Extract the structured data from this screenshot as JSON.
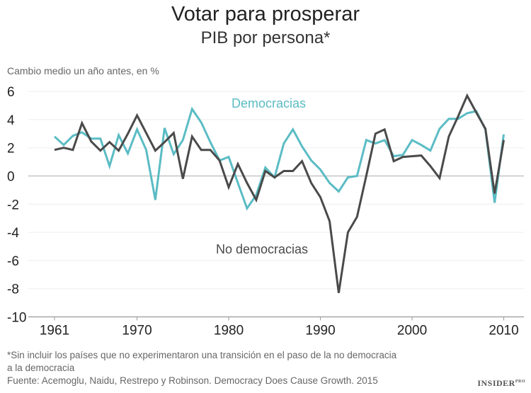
{
  "chart_data": {
    "type": "line",
    "title": "Votar para prosperar",
    "subtitle": "PIB por persona*",
    "ylabel": "Cambio medio un año antes, en %",
    "xlabel": "",
    "ylim": [
      -10,
      6
    ],
    "xlim": [
      1961,
      2010
    ],
    "yticks": [
      "6",
      "4",
      "2",
      "0",
      "-2",
      "-4",
      "-6",
      "-8",
      "-10"
    ],
    "xticks": [
      "1961",
      "1970",
      "1980",
      "1990",
      "2000",
      "2010"
    ],
    "grid": true,
    "series": [
      {
        "name": "Democracias",
        "color": "#5bbcc4",
        "x": [
          1961,
          1962,
          1963,
          1964,
          1965,
          1966,
          1967,
          1968,
          1969,
          1970,
          1971,
          1972,
          1973,
          1974,
          1975,
          1976,
          1977,
          1978,
          1979,
          1980,
          1981,
          1982,
          1983,
          1984,
          1985,
          1986,
          1987,
          1988,
          1989,
          1990,
          1991,
          1992,
          1993,
          1994,
          1995,
          1996,
          1997,
          1998,
          1999,
          2000,
          2001,
          2002,
          2003,
          2004,
          2005,
          2006,
          2007,
          2008,
          2009,
          2010
        ],
        "values": [
          2.8,
          2.2,
          2.85,
          3.1,
          2.65,
          2.65,
          0.7,
          2.9,
          1.6,
          3.3,
          1.85,
          -1.7,
          3.4,
          1.55,
          2.55,
          4.75,
          3.8,
          2.4,
          1.1,
          1.35,
          -0.5,
          -2.3,
          -1.35,
          0.6,
          -0.1,
          2.3,
          3.3,
          2.1,
          1.1,
          0.45,
          -0.5,
          -1.1,
          -0.1,
          0.0,
          2.55,
          2.3,
          2.55,
          1.4,
          1.5,
          2.55,
          2.2,
          1.8,
          3.35,
          4.05,
          4.05,
          4.45,
          4.6,
          3.3,
          -1.9,
          2.95
        ]
      },
      {
        "name": "No democracias",
        "color": "#4a4a4a",
        "x": [
          1961,
          1962,
          1963,
          1964,
          1965,
          1966,
          1967,
          1968,
          1969,
          1970,
          1971,
          1972,
          1973,
          1974,
          1975,
          1976,
          1977,
          1978,
          1979,
          1980,
          1981,
          1982,
          1983,
          1984,
          1985,
          1986,
          1987,
          1988,
          1989,
          1990,
          1991,
          1992,
          1993,
          1994,
          1995,
          1996,
          1997,
          1998,
          1999,
          2000,
          2001,
          2002,
          2003,
          2004,
          2005,
          2006,
          2007,
          2008,
          2009,
          2010
        ],
        "values": [
          1.85,
          2.0,
          1.85,
          3.75,
          2.45,
          1.8,
          2.4,
          1.8,
          3.0,
          4.3,
          3.05,
          1.8,
          2.4,
          3.05,
          -0.2,
          2.8,
          1.85,
          1.85,
          1.1,
          -0.8,
          0.85,
          -0.5,
          -1.7,
          0.35,
          -0.1,
          0.35,
          0.35,
          1.05,
          -0.5,
          -1.5,
          -3.2,
          -8.3,
          -4.0,
          -2.9,
          0.0,
          3.0,
          3.3,
          1.05,
          1.35,
          1.4,
          1.45,
          0.7,
          -0.15,
          2.8,
          4.2,
          5.7,
          4.5,
          3.35,
          -1.25,
          2.55
        ]
      }
    ]
  },
  "notes": {
    "footnote_line1": "*Sin incluir los países que no experimentaron una transición en el paso de la no democracia",
    "footnote_line2": "a la democracia",
    "source": "Fuente: Acemoglu, Naidu, Restrepo y Robinson. Democracy Does Cause Growth. 2015"
  },
  "logo": {
    "text": "INSIDER",
    "suffix": "PRO"
  }
}
